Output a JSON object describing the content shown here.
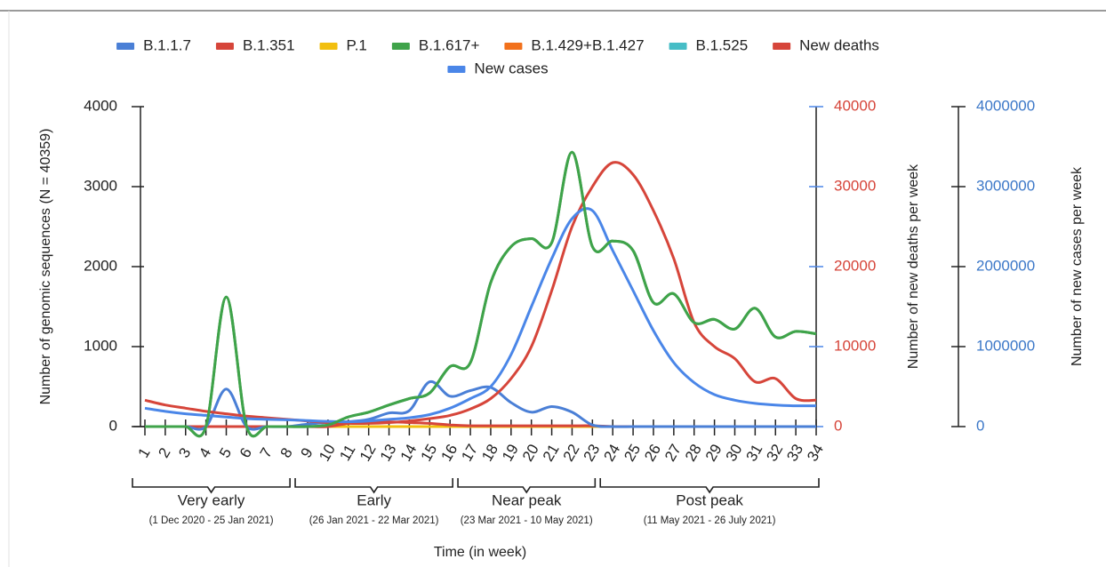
{
  "chart_data": {
    "type": "line",
    "x_label": "Time (in week)",
    "y_label": "Number of genomic sequences (N = 40359)",
    "y2_label": "Number of new deaths per week",
    "y3_label": "Number of new cases per week",
    "categories": [
      "1",
      "2",
      "3",
      "4",
      "5",
      "6",
      "7",
      "8",
      "9",
      "10",
      "11",
      "12",
      "13",
      "14",
      "15",
      "16",
      "17",
      "18",
      "19",
      "20",
      "21",
      "22",
      "23",
      "24",
      "25",
      "26",
      "27",
      "28",
      "29",
      "30",
      "31",
      "32",
      "33",
      "34"
    ],
    "ylim": [
      0,
      4000
    ],
    "yticks": [
      0,
      1000,
      2000,
      3000,
      4000
    ],
    "y2lim": [
      0,
      40000
    ],
    "y2ticks": [
      0,
      10000,
      20000,
      30000,
      40000
    ],
    "y3lim": [
      0,
      4000000
    ],
    "y3ticks": [
      0,
      1000000,
      2000000,
      3000000,
      4000000
    ],
    "legend": "top",
    "series": [
      {
        "name": "B.1.1.7",
        "color": "#4a7fd6",
        "values": [
          0,
          0,
          0,
          0,
          470,
          0,
          0,
          0,
          30,
          50,
          60,
          90,
          170,
          200,
          560,
          380,
          450,
          490,
          300,
          180,
          250,
          180,
          20,
          0,
          0,
          0,
          0,
          0,
          0,
          0,
          0,
          0,
          0,
          0
        ]
      },
      {
        "name": "B.1.351",
        "color": "#d6453a",
        "values": [
          0,
          0,
          0,
          0,
          0,
          0,
          0,
          0,
          0,
          0,
          40,
          60,
          60,
          50,
          40,
          20,
          10,
          10,
          10,
          10,
          10,
          10,
          10,
          0,
          0,
          0,
          0,
          0,
          0,
          0,
          0,
          0,
          0,
          0
        ]
      },
      {
        "name": "P.1",
        "color": "#f2bf0f",
        "values": [
          0,
          0,
          0,
          0,
          0,
          0,
          0,
          0,
          0,
          0,
          0,
          0,
          0,
          0,
          0,
          0,
          0,
          0,
          0,
          0,
          0,
          0,
          0,
          0,
          0,
          0,
          0,
          0,
          0,
          0,
          0,
          0,
          0,
          0
        ]
      },
      {
        "name": "B.1.617+",
        "color": "#3fa34a",
        "values": [
          0,
          0,
          0,
          0,
          1620,
          0,
          0,
          0,
          0,
          20,
          120,
          180,
          270,
          350,
          420,
          750,
          800,
          1800,
          2250,
          2350,
          2300,
          3430,
          2250,
          2320,
          2200,
          1550,
          1660,
          1300,
          1340,
          1220,
          1480,
          1120,
          1190,
          1160
        ]
      },
      {
        "name": "B.1.429+B.1.427",
        "color": "#f2711c",
        "values": [
          0,
          0,
          0,
          0,
          0,
          0,
          0,
          0,
          0,
          0,
          0,
          0,
          0,
          0,
          0,
          0,
          0,
          0,
          0,
          0,
          0,
          0,
          0,
          0,
          0,
          0,
          0,
          0,
          0,
          0,
          0,
          0,
          0,
          0
        ]
      },
      {
        "name": "B.1.525",
        "color": "#46bdc6",
        "values": [
          0,
          0,
          0,
          0,
          0,
          0,
          0,
          0,
          0,
          0,
          0,
          0,
          0,
          0,
          0,
          0,
          0,
          0,
          0,
          0,
          0,
          0,
          0,
          0,
          0,
          0,
          0,
          0,
          0,
          0,
          0,
          0,
          0,
          0
        ]
      },
      {
        "name": "New deaths",
        "color": "#d6453a",
        "axis": "y2",
        "values": [
          3300,
          2700,
          2300,
          1900,
          1600,
          1300,
          1100,
          900,
          700,
          500,
          400,
          400,
          500,
          700,
          1000,
          1400,
          2200,
          3500,
          6000,
          10000,
          17000,
          25000,
          30000,
          33000,
          31500,
          27000,
          21000,
          13000,
          10000,
          8500,
          5600,
          6000,
          3500,
          3300
        ]
      },
      {
        "name": "New cases",
        "color": "#4a86e8",
        "axis": "y3",
        "values": [
          230000,
          190000,
          160000,
          140000,
          120000,
          100000,
          90000,
          85000,
          75000,
          65000,
          60000,
          70000,
          90000,
          110000,
          150000,
          230000,
          350000,
          500000,
          900000,
          1500000,
          2100000,
          2600000,
          2700000,
          2200000,
          1700000,
          1200000,
          800000,
          550000,
          400000,
          330000,
          290000,
          270000,
          260000,
          260000
        ]
      }
    ],
    "annotations": [
      {
        "label": "Very early",
        "dates": "(1 Dec 2020 - 25 Jan 2021)"
      },
      {
        "label": "Early",
        "dates": "(26 Jan 2021 - 22 Mar 2021)"
      },
      {
        "label": "Near peak",
        "dates": "(23 Mar 2021 - 10 May 2021)"
      },
      {
        "label": "Post peak",
        "dates": "(11 May 2021 - 26 July 2021)"
      }
    ]
  }
}
